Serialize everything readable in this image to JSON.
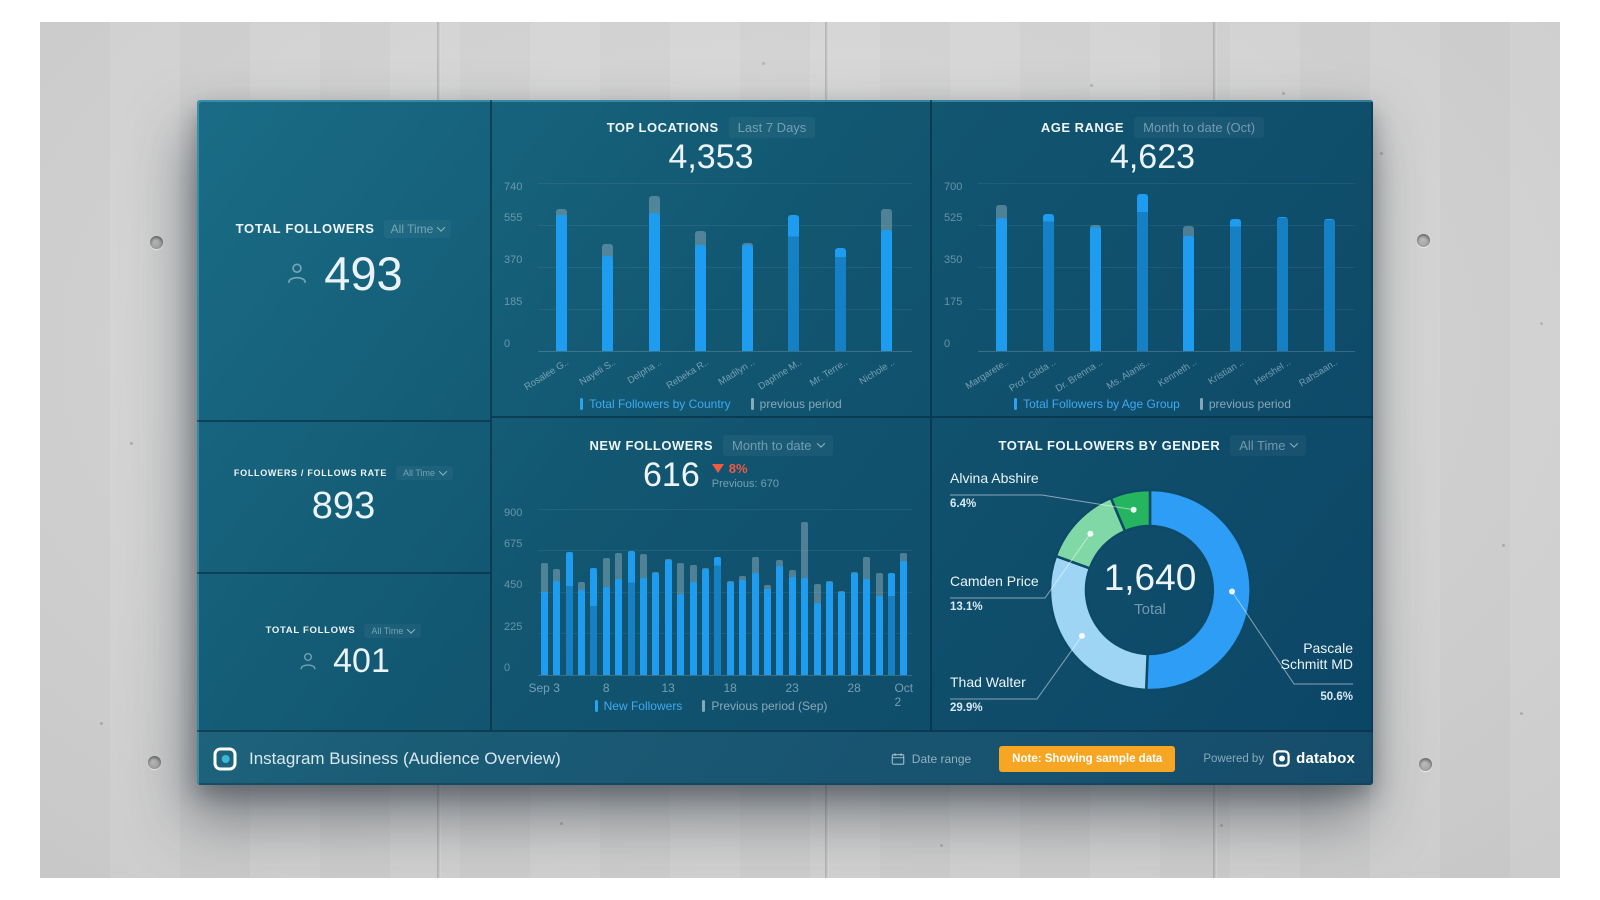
{
  "dashboard": {
    "kpis": [
      {
        "title": "TOTAL FOLLOWERS",
        "range": "All Time",
        "value": "493"
      },
      {
        "title": "FOLLOWERS / FOLLOWS RATE",
        "range": "All Time",
        "value": "893"
      },
      {
        "title": "TOTAL FOLLOWS",
        "range": "All Time",
        "value": "401"
      }
    ],
    "footer": {
      "title": "Instagram Business (Audience Overview)",
      "date_range_label": "Date range",
      "note_badge": "Note: Showing sample data",
      "powered_by": "Powered by",
      "brand": "databox"
    },
    "colors": {
      "accent_blue": "#1e9cf0",
      "accent_blue_dark": "#1580c4",
      "previous_gray": "rgba(167,192,205,0.42)",
      "red": "#ef5a44",
      "orange": "#f6a623"
    }
  },
  "chart_data": [
    {
      "type": "bar",
      "title": "TOP LOCATIONS",
      "range_label": "Last 7 Days",
      "total": "4,353",
      "ylim": [
        0,
        740
      ],
      "yticks": [
        740,
        555,
        370,
        185,
        0
      ],
      "categories": [
        "Rosalee G..",
        "Nayeli S..",
        "Delpha ..",
        "Rebeka R..",
        "Madilyn ..",
        "Daphne M..",
        "Mr. Terre..",
        "Nichole .."
      ],
      "legend_position": "bottom",
      "grid": true,
      "series": [
        {
          "name": "Total Followers by Country",
          "values": [
            600,
            420,
            610,
            465,
            465,
            600,
            455,
            535
          ]
        },
        {
          "name": "previous period",
          "values": [
            625,
            470,
            685,
            530,
            478,
            505,
            415,
            625
          ]
        }
      ]
    },
    {
      "type": "bar",
      "title": "AGE RANGE",
      "range_label": "Month to date (Oct)",
      "total": "4,623",
      "ylim": [
        0,
        700
      ],
      "yticks": [
        700,
        525,
        350,
        175,
        0
      ],
      "categories": [
        "Margarete..",
        "Prof. Gilda ..",
        "Dr. Brenna ..",
        "Ms. Alanis..",
        "Kenneth ..",
        "Kristian ..",
        "Hershel ..",
        "Rahsaan.."
      ],
      "legend_position": "bottom",
      "grid": true,
      "series": [
        {
          "name": "Total Followers by Age Group",
          "values": [
            555,
            570,
            515,
            655,
            480,
            550,
            560,
            550
          ]
        },
        {
          "name": "previous period",
          "values": [
            610,
            540,
            525,
            580,
            520,
            520,
            555,
            545
          ]
        }
      ]
    },
    {
      "type": "bar",
      "title": "NEW FOLLOWERS",
      "range_label": "Month to date",
      "total": "616",
      "delta": "8%",
      "delta_direction": "down",
      "previous_label": "Previous: 670",
      "ylim": [
        0,
        900
      ],
      "yticks": [
        900,
        675,
        450,
        225,
        0
      ],
      "x_tick_labels": [
        "Sep 3",
        "8",
        "13",
        "18",
        "23",
        "28",
        "Oct 2"
      ],
      "x_tick_positions": [
        0,
        5,
        10,
        15,
        20,
        25,
        29
      ],
      "legend_position": "bottom",
      "grid": true,
      "series": [
        {
          "name": "New Followers",
          "values": [
            450,
            510,
            665,
            460,
            580,
            475,
            520,
            670,
            525,
            555,
            625,
            440,
            505,
            575,
            640,
            505,
            515,
            555,
            465,
            590,
            530,
            525,
            390,
            505,
            450,
            555,
            520,
            430,
            555,
            620
          ]
        },
        {
          "name": "Previous period (Sep)",
          "values": [
            605,
            575,
            480,
            505,
            375,
            635,
            660,
            500,
            655,
            560,
            630,
            610,
            595,
            580,
            595,
            510,
            535,
            640,
            490,
            625,
            570,
            830,
            495,
            510,
            455,
            560,
            640,
            555,
            430,
            660
          ]
        }
      ]
    },
    {
      "type": "donut",
      "title": "TOTAL FOLLOWERS BY GENDER",
      "range_label": "All Time",
      "center_value": "1,640",
      "center_label": "Total",
      "slices": [
        {
          "label": "Pascale Schmitt MD",
          "line1": "Pascale",
          "line2": "Schmitt MD",
          "pct": 50.6,
          "pct_label": "50.6%",
          "color": "#2e9df5"
        },
        {
          "label": "Thad Walter",
          "pct": 29.9,
          "pct_label": "29.9%",
          "color": "#9ed4f4"
        },
        {
          "label": "Camden Price",
          "pct": 13.1,
          "pct_label": "13.1%",
          "color": "#7fd8a6"
        },
        {
          "label": "Alvina Abshire",
          "pct": 6.4,
          "pct_label": "6.4%",
          "color": "#25b45f"
        }
      ]
    }
  ]
}
